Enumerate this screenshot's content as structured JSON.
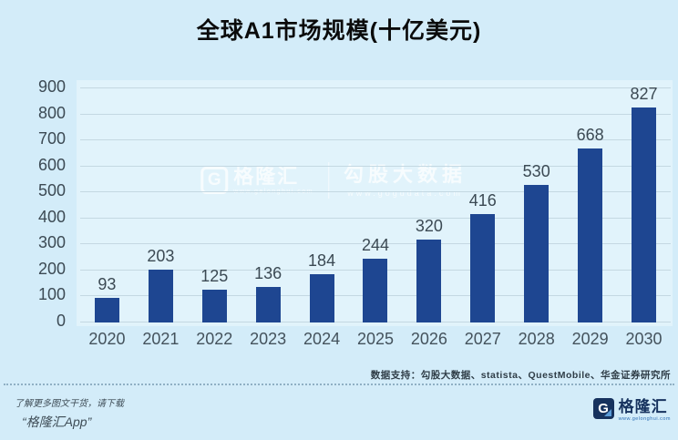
{
  "title": "全球A1市场规模(十亿美元)",
  "chart_data": {
    "type": "bar",
    "categories": [
      "2020",
      "2021",
      "2022",
      "2023",
      "2024",
      "2025",
      "2026",
      "2027",
      "2028",
      "2029",
      "2030"
    ],
    "values": [
      93,
      203,
      125,
      136,
      184,
      244,
      320,
      416,
      530,
      668,
      827
    ],
    "title": "全球A1市场规模(十亿美元)",
    "xlabel": "",
    "ylabel": "",
    "ylim": [
      0,
      900
    ],
    "ytick_interval": 100,
    "grid": true,
    "legend": false,
    "bar_color": "#1e4691"
  },
  "watermark": {
    "logo_letter": "G",
    "brand": "格隆汇",
    "brand_url": "www.gelonghui.com",
    "product": "勾股大数据",
    "product_url": "www.gogudata.com"
  },
  "footer": {
    "data_support": "数据支持：勾股大数据、statista、QuestMobile、华金证券研究所",
    "promo_line1": "了解更多图文干货，请下载",
    "promo_line2": "“格隆汇App”",
    "logo_letter": "G",
    "logo_text": "格隆汇",
    "logo_url": "www.gelonghui.com"
  },
  "colors": {
    "background": "#d3ecf9",
    "plot_background": "#e1f3fb",
    "gridline": "#c4d8e2",
    "bar": "#1e4691",
    "axis_text": "#3c4a54",
    "title_text": "#0b0b0b",
    "logo_navy": "#16325e"
  }
}
